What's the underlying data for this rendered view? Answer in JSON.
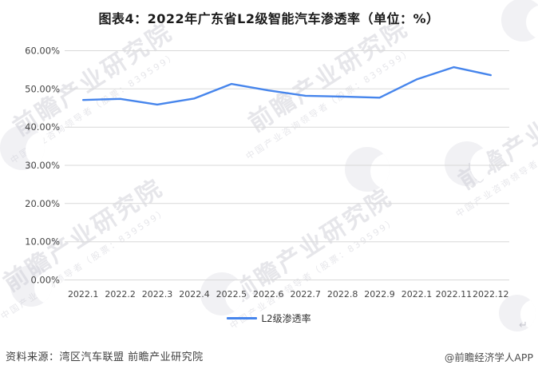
{
  "title": "图表4：2022年广东省L2级智能汽车渗透率（单位：%）",
  "chart_data": {
    "type": "line",
    "title": "图表4：2022年广东省L2级智能汽车渗透率（单位：%）",
    "categories": [
      "2022.1",
      "2022.2",
      "2022.3",
      "2022.4",
      "2022.5",
      "2022.6",
      "2022.7",
      "2022.8",
      "2022.9",
      "2022.1",
      "2022.11",
      "2022.12"
    ],
    "series": [
      {
        "name": "L2级渗透率",
        "values": [
          47.1,
          47.4,
          45.9,
          47.5,
          51.3,
          49.6,
          48.2,
          48.0,
          47.7,
          52.5,
          55.7,
          53.6
        ]
      }
    ],
    "unit": "%",
    "ylim": [
      0,
      60
    ],
    "y_ticks": [
      "0.00%",
      "10.00%",
      "20.00%",
      "30.00%",
      "40.00%",
      "50.00%",
      "60.00%"
    ],
    "grid": true,
    "legend_position": "bottom"
  },
  "footer": {
    "source": "资料来源：湾区汽车联盟 前瞻产业研究院",
    "credit": "@前瞻经济学人APP"
  },
  "watermark": {
    "big": "前瞻产业研究院",
    "small": "中国产业咨询领导者（股票：839599）",
    "corner_glyph": "↵"
  },
  "colors": {
    "line": "#4685EC",
    "grid": "#D9D9D9",
    "tick_text": "#454545",
    "title_text": "#1A1A1A"
  }
}
